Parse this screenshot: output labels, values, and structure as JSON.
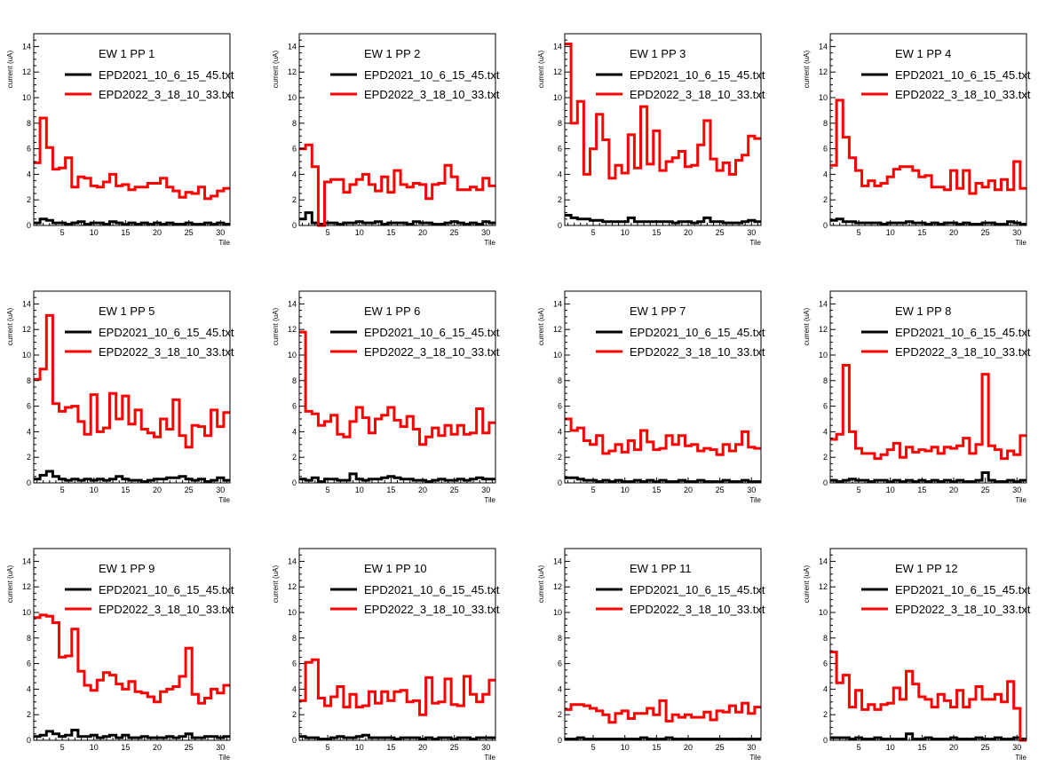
{
  "chart_data": {
    "type": "line",
    "style": "step-histogram",
    "grid": false,
    "layout": "3x4",
    "xlabel": "Tile",
    "ylabel": "current (uA)",
    "xlim": [
      0.5,
      31.5
    ],
    "ylim": [
      0,
      15
    ],
    "xticks": [
      5,
      10,
      15,
      20,
      25,
      30
    ],
    "yticks": [
      0,
      2,
      4,
      6,
      8,
      10,
      12,
      14
    ],
    "legend_position": "top-right",
    "colors": {
      "EPD2021_10_6_15_45.txt": "#000000",
      "EPD2022_3_18_10_33.txt": "#ff0000"
    },
    "panels": [
      {
        "title": "EW 1 PP 1",
        "series": [
          {
            "name": "EPD2021_10_6_15_45.txt",
            "values": [
              0.2,
              0.5,
              0.4,
              0.2,
              0.2,
              0.1,
              0.2,
              0.3,
              0.1,
              0.2,
              0.2,
              0.1,
              0.3,
              0.2,
              0.1,
              0.2,
              0.1,
              0.2,
              0.1,
              0.2,
              0.1,
              0.2,
              0.1,
              0.1,
              0.2,
              0.1,
              0.1,
              0.2,
              0.1,
              0.2,
              0.1
            ]
          },
          {
            "name": "EPD2022_3_18_10_33.txt",
            "values": [
              4.9,
              8.4,
              6.1,
              4.4,
              4.5,
              5.3,
              3.0,
              3.8,
              3.7,
              3.1,
              3.0,
              3.4,
              4.0,
              3.1,
              3.2,
              2.8,
              3.0,
              3.0,
              3.3,
              3.3,
              3.7,
              3.0,
              2.7,
              2.2,
              2.6,
              2.5,
              3.0,
              2.1,
              2.3,
              2.7,
              2.9
            ]
          }
        ]
      },
      {
        "title": "EW 1 PP 2",
        "series": [
          {
            "name": "EPD2021_10_6_15_45.txt",
            "values": [
              0.5,
              1.0,
              0.2,
              0.1,
              0.2,
              0.2,
              0.1,
              0.2,
              0.2,
              0.3,
              0.2,
              0.2,
              0.3,
              0.1,
              0.2,
              0.2,
              0.2,
              0.1,
              0.3,
              0.2,
              0.2,
              0.1,
              0.1,
              0.2,
              0.3,
              0.2,
              0.1,
              0.2,
              0.1,
              0.3,
              0.2
            ]
          },
          {
            "name": "EPD2022_3_18_10_33.txt",
            "values": [
              6.0,
              6.3,
              4.6,
              0.0,
              3.4,
              3.6,
              3.6,
              2.6,
              3.2,
              3.6,
              4.0,
              3.2,
              2.7,
              3.8,
              2.6,
              4.3,
              3.2,
              3.0,
              3.3,
              3.2,
              2.1,
              3.2,
              3.3,
              4.7,
              3.8,
              2.8,
              2.8,
              3.0,
              2.8,
              3.7,
              3.1
            ]
          }
        ]
      },
      {
        "title": "EW 1 PP 3",
        "series": [
          {
            "name": "EPD2021_10_6_15_45.txt",
            "values": [
              0.8,
              0.6,
              0.5,
              0.5,
              0.4,
              0.4,
              0.3,
              0.3,
              0.3,
              0.3,
              0.6,
              0.3,
              0.3,
              0.3,
              0.3,
              0.3,
              0.3,
              0.2,
              0.3,
              0.3,
              0.2,
              0.3,
              0.6,
              0.3,
              0.3,
              0.2,
              0.2,
              0.2,
              0.3,
              0.4,
              0.3
            ]
          },
          {
            "name": "EPD2022_3_18_10_33.txt",
            "values": [
              14.2,
              8.0,
              9.7,
              4.0,
              6.0,
              8.7,
              6.7,
              3.7,
              4.7,
              4.1,
              7.1,
              4.5,
              9.3,
              4.8,
              7.4,
              4.3,
              5.0,
              5.3,
              5.8,
              4.6,
              4.7,
              6.3,
              8.2,
              5.2,
              4.3,
              4.9,
              4.0,
              5.1,
              5.5,
              7.0,
              6.8
            ]
          }
        ]
      },
      {
        "title": "EW 1 PP 4",
        "series": [
          {
            "name": "EPD2021_10_6_15_45.txt",
            "values": [
              0.4,
              0.5,
              0.3,
              0.3,
              0.2,
              0.2,
              0.2,
              0.2,
              0.1,
              0.2,
              0.2,
              0.2,
              0.3,
              0.2,
              0.2,
              0.1,
              0.2,
              0.1,
              0.2,
              0.2,
              0.1,
              0.2,
              0.1,
              0.1,
              0.2,
              0.2,
              0.1,
              0.1,
              0.3,
              0.2,
              0.1
            ]
          },
          {
            "name": "EPD2022_3_18_10_33.txt",
            "values": [
              4.7,
              9.8,
              6.9,
              5.3,
              4.3,
              3.1,
              3.5,
              3.1,
              3.3,
              3.8,
              4.4,
              4.6,
              4.6,
              4.3,
              3.8,
              3.9,
              3.0,
              3.0,
              2.8,
              4.3,
              2.9,
              4.3,
              2.5,
              3.3,
              3.0,
              3.5,
              2.8,
              3.6,
              2.8,
              5.0,
              2.9
            ]
          }
        ]
      },
      {
        "title": "EW 1 PP 5",
        "series": [
          {
            "name": "EPD2021_10_6_15_45.txt",
            "values": [
              0.3,
              0.6,
              0.9,
              0.5,
              0.3,
              0.2,
              0.3,
              0.2,
              0.3,
              0.2,
              0.3,
              0.2,
              0.3,
              0.5,
              0.3,
              0.2,
              0.2,
              0.1,
              0.2,
              0.3,
              0.3,
              0.4,
              0.4,
              0.5,
              0.3,
              0.2,
              0.3,
              0.1,
              0.2,
              0.4,
              0.2
            ]
          },
          {
            "name": "EPD2022_3_18_10_33.txt",
            "values": [
              8.1,
              8.9,
              13.1,
              6.2,
              5.6,
              5.9,
              6.0,
              4.8,
              3.8,
              6.9,
              4.0,
              4.3,
              7.0,
              5.0,
              6.8,
              4.6,
              5.7,
              4.2,
              3.9,
              3.6,
              5.0,
              4.2,
              6.5,
              3.7,
              2.8,
              4.5,
              4.4,
              3.7,
              5.7,
              4.4,
              5.5
            ]
          }
        ]
      },
      {
        "title": "EW 1 PP 6",
        "series": [
          {
            "name": "EPD2021_10_6_15_45.txt",
            "values": [
              0.3,
              0.2,
              0.4,
              0.1,
              0.3,
              0.3,
              0.2,
              0.2,
              0.7,
              0.3,
              0.2,
              0.3,
              0.3,
              0.4,
              0.5,
              0.4,
              0.3,
              0.3,
              0.2,
              0.2,
              0.1,
              0.2,
              0.3,
              0.2,
              0.2,
              0.3,
              0.2,
              0.3,
              0.4,
              0.3,
              0.3
            ]
          },
          {
            "name": "EPD2022_3_18_10_33.txt",
            "values": [
              11.8,
              5.6,
              5.4,
              4.5,
              4.8,
              5.3,
              3.8,
              3.6,
              4.8,
              5.9,
              5.1,
              3.9,
              5.0,
              5.3,
              5.9,
              4.9,
              4.4,
              5.2,
              4.2,
              3.0,
              3.6,
              4.3,
              3.7,
              4.5,
              3.8,
              4.5,
              3.8,
              3.9,
              5.8,
              3.9,
              4.7
            ]
          }
        ]
      },
      {
        "title": "EW 1 PP 7",
        "series": [
          {
            "name": "EPD2021_10_6_15_45.txt",
            "values": [
              0.4,
              0.4,
              0.3,
              0.2,
              0.2,
              0.1,
              0.2,
              0.1,
              0.2,
              0.1,
              0.1,
              0.2,
              0.1,
              0.2,
              0.1,
              0.2,
              0.1,
              0.1,
              0.2,
              0.1,
              0.1,
              0.2,
              0.1,
              0.1,
              0.1,
              0.2,
              0.1,
              0.1,
              0.2,
              0.1,
              0.1
            ]
          },
          {
            "name": "EPD2022_3_18_10_33.txt",
            "values": [
              5.0,
              4.1,
              4.3,
              3.3,
              3.0,
              3.7,
              2.3,
              2.5,
              3.0,
              2.4,
              3.3,
              2.6,
              4.1,
              3.2,
              2.6,
              2.7,
              3.7,
              3.0,
              3.7,
              2.9,
              3.0,
              2.5,
              2.7,
              2.6,
              2.2,
              3.0,
              2.5,
              3.0,
              4.0,
              2.8,
              2.7
            ]
          }
        ]
      },
      {
        "title": "EW 1 PP 8",
        "series": [
          {
            "name": "EPD2021_10_6_15_45.txt",
            "values": [
              0.2,
              0.1,
              0.2,
              0.3,
              0.2,
              0.2,
              0.1,
              0.2,
              0.2,
              0.1,
              0.2,
              0.1,
              0.2,
              0.1,
              0.2,
              0.1,
              0.2,
              0.1,
              0.2,
              0.1,
              0.2,
              0.1,
              0.1,
              0.2,
              0.8,
              0.2,
              0.1,
              0.1,
              0.2,
              0.1,
              0.2
            ]
          },
          {
            "name": "EPD2022_3_18_10_33.txt",
            "values": [
              3.4,
              3.8,
              9.2,
              4.0,
              2.7,
              2.3,
              2.3,
              1.9,
              2.2,
              2.6,
              3.1,
              2.0,
              2.8,
              2.4,
              2.6,
              2.5,
              2.8,
              2.3,
              2.8,
              2.7,
              2.9,
              3.5,
              2.3,
              3.0,
              8.5,
              2.9,
              2.6,
              1.9,
              2.5,
              2.2,
              3.7
            ]
          }
        ]
      },
      {
        "title": "EW 1 PP 9",
        "series": [
          {
            "name": "EPD2021_10_6_15_45.txt",
            "values": [
              0.3,
              0.4,
              0.7,
              0.5,
              0.3,
              0.4,
              0.8,
              0.3,
              0.3,
              0.4,
              0.2,
              0.3,
              0.4,
              0.2,
              0.4,
              0.2,
              0.2,
              0.3,
              0.2,
              0.2,
              0.2,
              0.3,
              0.2,
              0.3,
              0.5,
              0.2,
              0.2,
              0.3,
              0.3,
              0.2,
              0.3
            ]
          },
          {
            "name": "EPD2022_3_18_10_33.txt",
            "values": [
              9.6,
              9.8,
              9.7,
              9.2,
              6.5,
              6.6,
              8.7,
              5.4,
              4.3,
              3.9,
              4.7,
              5.3,
              5.1,
              4.4,
              4.0,
              4.6,
              3.8,
              3.7,
              3.4,
              3.0,
              3.8,
              4.0,
              4.2,
              5.0,
              7.2,
              3.6,
              2.9,
              3.3,
              4.0,
              3.7,
              4.3
            ]
          }
        ]
      },
      {
        "title": "EW 1 PP 10",
        "series": [
          {
            "name": "EPD2021_10_6_15_45.txt",
            "values": [
              0.3,
              0.2,
              0.2,
              0.1,
              0.1,
              0.2,
              0.3,
              0.2,
              0.2,
              0.3,
              0.4,
              0.2,
              0.2,
              0.2,
              0.2,
              0.1,
              0.2,
              0.2,
              0.2,
              0.1,
              0.2,
              0.1,
              0.2,
              0.2,
              0.1,
              0.2,
              0.2,
              0.1,
              0.2,
              0.2,
              0.2
            ]
          },
          {
            "name": "EPD2022_3_18_10_33.txt",
            "values": [
              3.1,
              6.1,
              6.3,
              3.3,
              2.7,
              3.4,
              4.2,
              2.6,
              3.6,
              2.6,
              2.7,
              3.8,
              2.9,
              3.8,
              3.1,
              3.8,
              3.9,
              3.0,
              3.1,
              2.0,
              4.9,
              2.9,
              3.0,
              4.8,
              2.8,
              2.7,
              5.0,
              3.6,
              3.0,
              3.6,
              4.7
            ]
          }
        ]
      },
      {
        "title": "EW 1 PP 11",
        "series": [
          {
            "name": "EPD2021_10_6_15_45.txt",
            "values": [
              0.1,
              0.1,
              0.2,
              0.1,
              0.1,
              0.1,
              0.1,
              0.1,
              0.1,
              0.1,
              0.1,
              0.1,
              0.2,
              0.1,
              0.1,
              0.1,
              0.2,
              0.1,
              0.1,
              0.1,
              0.1,
              0.1,
              0.1,
              0.1,
              0.1,
              0.1,
              0.1,
              0.1,
              0.1,
              0.1,
              0.1
            ]
          },
          {
            "name": "EPD2022_3_18_10_33.txt",
            "values": [
              2.4,
              2.8,
              2.8,
              2.7,
              2.5,
              2.3,
              2.0,
              1.4,
              2.1,
              2.3,
              1.7,
              2.1,
              2.1,
              2.5,
              2.0,
              3.1,
              1.5,
              2.0,
              1.8,
              2.0,
              1.8,
              1.8,
              2.2,
              1.6,
              2.3,
              2.2,
              2.7,
              2.2,
              2.9,
              2.1,
              2.6
            ]
          }
        ]
      },
      {
        "title": "EW 1 PP 12",
        "series": [
          {
            "name": "EPD2021_10_6_15_45.txt",
            "values": [
              0.2,
              0.2,
              0.2,
              0.1,
              0.2,
              0.1,
              0.1,
              0.2,
              0.1,
              0.1,
              0.1,
              0.1,
              0.5,
              0.1,
              0.1,
              0.2,
              0.1,
              0.1,
              0.1,
              0.2,
              0.1,
              0.1,
              0.1,
              0.2,
              0.1,
              0.1,
              0.2,
              0.1,
              0.1,
              0.2,
              0.1
            ]
          },
          {
            "name": "EPD2022_3_18_10_33.txt",
            "values": [
              6.9,
              4.5,
              5.1,
              2.6,
              3.9,
              2.4,
              2.8,
              2.4,
              2.8,
              2.9,
              4.1,
              3.2,
              5.4,
              4.4,
              3.4,
              3.2,
              2.6,
              3.6,
              3.1,
              2.6,
              3.9,
              2.6,
              3.2,
              4.2,
              3.2,
              3.2,
              3.6,
              3.0,
              4.6,
              2.5,
              0.0
            ]
          }
        ]
      }
    ]
  }
}
